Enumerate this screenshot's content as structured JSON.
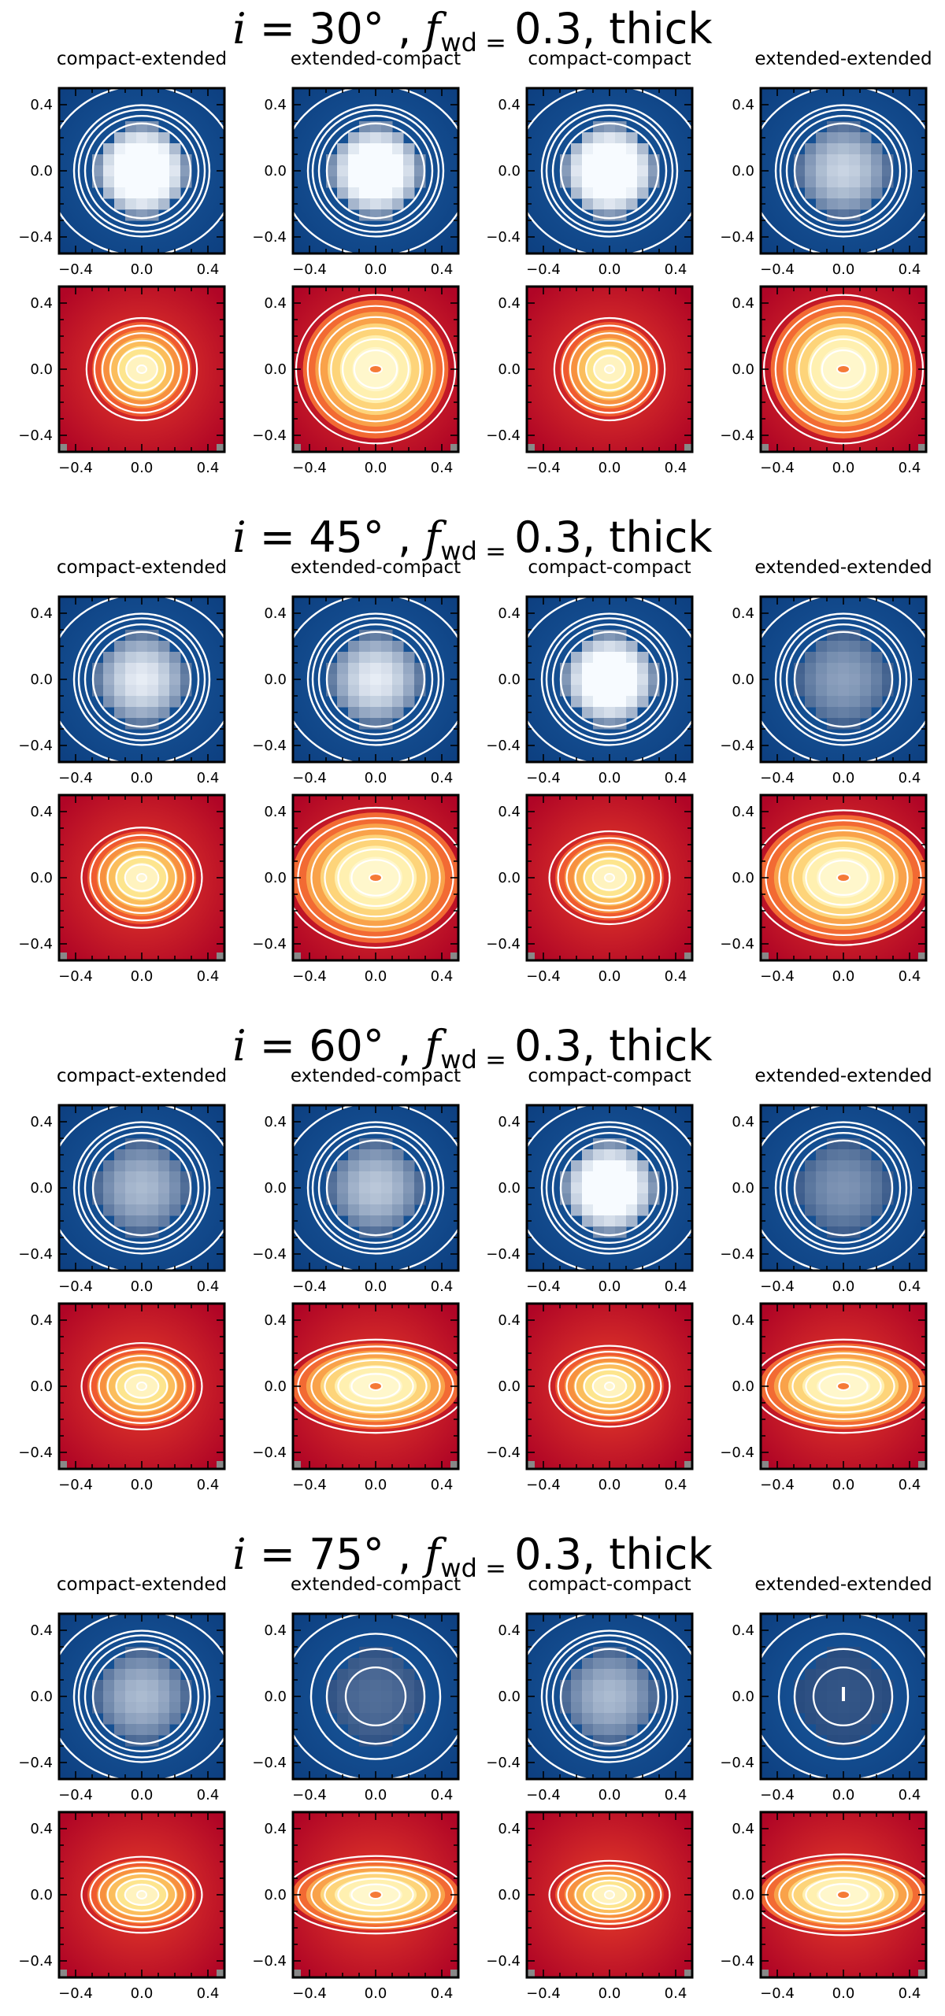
{
  "figure": {
    "panel_titles": [
      "compact-extended",
      "extended-compact",
      "compact-compact",
      "extended-extended"
    ],
    "axis_tick_labels": [
      "−0.4",
      "0.0",
      "0.4"
    ],
    "axis_ticks": [
      -0.4,
      0.0,
      0.4
    ],
    "axis_range": [
      -0.5,
      0.5
    ],
    "colormaps": {
      "top_row": "Blues_r",
      "bottom_row": "YlOrRd_r"
    },
    "contour_color": "#ffffff"
  },
  "groups": [
    {
      "inclination": "30",
      "title_mid": "° , ",
      "f_sub": "wd = ",
      "f_value": "0.3",
      "title_end": ", thick",
      "blue_levels": [
        1.0,
        0.95,
        1.0,
        0.55
      ],
      "red_elong": [
        1.05,
        1.0,
        1.05,
        1.0
      ]
    },
    {
      "inclination": "45",
      "title_mid": "° , ",
      "f_sub": "wd = ",
      "f_value": "0.3",
      "title_end": ", thick",
      "blue_levels": [
        0.65,
        0.65,
        0.95,
        0.35
      ],
      "red_elong": [
        1.2,
        1.25,
        1.3,
        1.3
      ]
    },
    {
      "inclination": "60",
      "title_mid": "° , ",
      "f_sub": "wd = ",
      "f_value": "0.3",
      "title_end": ", thick",
      "blue_levels": [
        0.45,
        0.5,
        0.95,
        0.3
      ],
      "red_elong": [
        1.4,
        1.9,
        1.5,
        1.9
      ]
    },
    {
      "inclination": "75",
      "title_mid": "° , ",
      "f_sub": "wd = ",
      "f_value": "0.3",
      "title_end": ", thick",
      "blue_levels": [
        0.45,
        0.15,
        0.45,
        0.05
      ],
      "red_elong": [
        1.6,
        2.3,
        1.8,
        2.2
      ]
    }
  ]
}
